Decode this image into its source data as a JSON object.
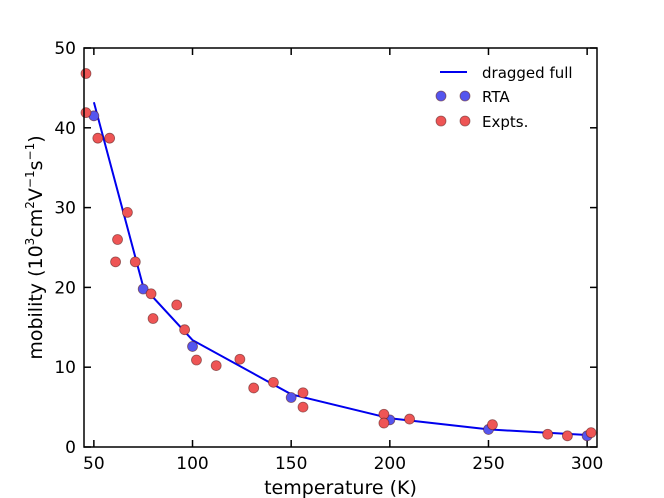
{
  "chart_data": {
    "type": "scatter",
    "title": "",
    "xlabel": "temperature (K)",
    "ylabel_parts": {
      "prefix": "mobility (10",
      "exp1": "3",
      "mid1": "cm",
      "exp2": "2",
      "mid2": "V",
      "exp3": "−1",
      "mid3": "s",
      "exp4": "−1",
      "suffix": ")"
    },
    "xlim": [
      45,
      305
    ],
    "ylim": [
      0,
      50
    ],
    "xticks": [
      50,
      100,
      150,
      200,
      250,
      300
    ],
    "yticks": [
      0,
      10,
      20,
      30,
      40,
      50
    ],
    "legend_position": "top-right",
    "series": [
      {
        "name": "dragged full",
        "kind": "line",
        "color": "#0000ee",
        "points": [
          [
            50,
            43.2
          ],
          [
            75,
            20.1
          ],
          [
            100,
            13.4
          ],
          [
            150,
            6.6
          ],
          [
            200,
            3.6
          ],
          [
            250,
            2.2
          ],
          [
            300,
            1.5
          ]
        ]
      },
      {
        "name": "RTA",
        "kind": "scatter",
        "color": "#5555ee",
        "points": [
          [
            50,
            41.5
          ],
          [
            75,
            19.8
          ],
          [
            100,
            12.6
          ],
          [
            150,
            6.2
          ],
          [
            200,
            3.4
          ],
          [
            250,
            2.2
          ],
          [
            300,
            1.4
          ]
        ]
      },
      {
        "name": "Expts.",
        "kind": "scatter",
        "color": "#ee5555",
        "points": [
          [
            46,
            46.8
          ],
          [
            46,
            41.9
          ],
          [
            52,
            38.7
          ],
          [
            58,
            38.7
          ],
          [
            67,
            29.4
          ],
          [
            62,
            26.0
          ],
          [
            61,
            23.2
          ],
          [
            71,
            23.2
          ],
          [
            79,
            19.2
          ],
          [
            80,
            16.1
          ],
          [
            92,
            17.8
          ],
          [
            96,
            14.7
          ],
          [
            102,
            10.9
          ],
          [
            112,
            10.2
          ],
          [
            124,
            11.0
          ],
          [
            131,
            7.4
          ],
          [
            141,
            8.1
          ],
          [
            156,
            6.8
          ],
          [
            156,
            5.0
          ],
          [
            197,
            4.1
          ],
          [
            197,
            3.0
          ],
          [
            210,
            3.5
          ],
          [
            252,
            2.8
          ],
          [
            280,
            1.6
          ],
          [
            290,
            1.4
          ],
          [
            302,
            1.8
          ]
        ]
      }
    ]
  }
}
